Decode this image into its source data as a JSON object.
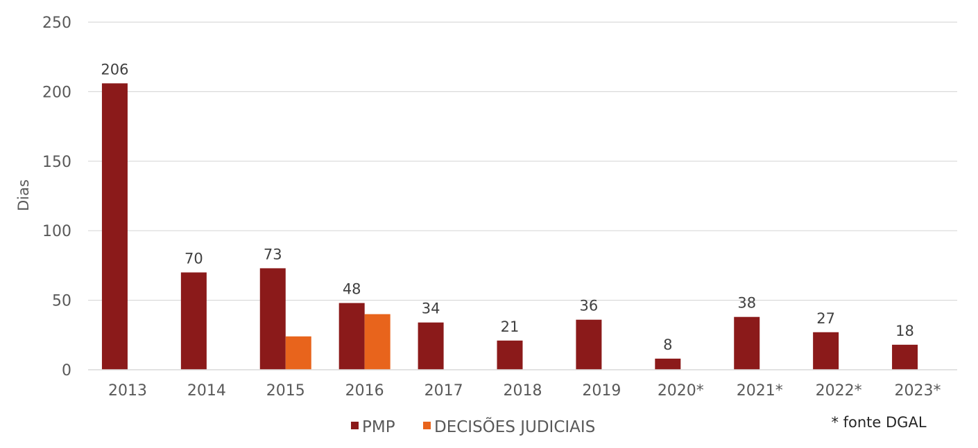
{
  "chart_data": {
    "type": "bar",
    "categories": [
      "2013",
      "2014",
      "2015",
      "2016",
      "2017",
      "2018",
      "2019",
      "2020*",
      "2021*",
      "2022*",
      "2023*"
    ],
    "series": [
      {
        "name": "PMP",
        "color": "#8B1A1A",
        "values": [
          206,
          70,
          73,
          48,
          34,
          21,
          36,
          8,
          38,
          27,
          18
        ]
      },
      {
        "name": "DECISÕES JUDICIAIS",
        "color": "#E8641C",
        "values": [
          null,
          null,
          24,
          40,
          null,
          null,
          null,
          null,
          null,
          null,
          null
        ]
      }
    ],
    "data_labels": [
      "206",
      "70",
      "73",
      "48",
      "34",
      "21",
      "36",
      "8",
      "38",
      "27",
      "18"
    ],
    "ylabel": "Dias",
    "ylim": [
      0,
      250
    ],
    "yticks": [
      0,
      50,
      100,
      150,
      200,
      250
    ],
    "grid": true,
    "legend_position": "bottom",
    "note": "* fonte DGAL"
  }
}
